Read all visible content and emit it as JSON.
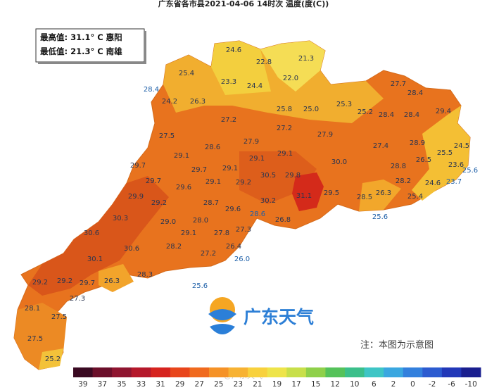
{
  "title": "广东省各市县2021-04-06 14时次 温度(度(C))",
  "stats": [
    "最高值: 31.1° C 惠阳",
    "最低值: 21.3° C 南雄"
  ],
  "logo": "广东天气",
  "note": "注：本图为示意图",
  "watermark": "@广东天气",
  "legend_labels": [
    "39",
    "37",
    "35",
    "33",
    "31",
    "29",
    "27",
    "25",
    "23",
    "21",
    "19",
    "17",
    "15",
    "12",
    "10",
    "6",
    "2",
    "0",
    "-2",
    "-6",
    "-10"
  ],
  "map_labels": [
    "24.6",
    "22.8",
    "21.3",
    "25.4",
    "23.3",
    "24.4",
    "22.0",
    "27.7",
    "28.4",
    "28.4",
    "24.2",
    "26.3",
    "25.8",
    "25.0",
    "25.3",
    "25.2",
    "28.4",
    "28.4",
    "29.4",
    "27.2",
    "27.2",
    "27.9",
    "27.5",
    "28.6",
    "27.9",
    "29.1",
    "29.1",
    "29.1",
    "29.1",
    "27.4",
    "28.9",
    "24.5",
    "25.5",
    "26.5",
    "30.0",
    "28.8",
    "23.6",
    "25.6",
    "29.7",
    "29.7",
    "29.7",
    "29.6",
    "29.1",
    "30.5",
    "29.8",
    "29.2",
    "28.2",
    "24.6",
    "23.7",
    "29.9",
    "29.5",
    "31.1",
    "26.3",
    "25.4",
    "28.5",
    "29.2",
    "28.7",
    "29.6",
    "30.2",
    "28.6",
    "30.3",
    "29.0",
    "28.0",
    "25.6",
    "26.8",
    "27.3",
    "30.6",
    "29.1",
    "27.8",
    "28.2",
    "26.4",
    "30.6",
    "27.2",
    "26.0",
    "30.1",
    "28.3",
    "29.2",
    "29.2",
    "29.7",
    "26.3",
    "25.6",
    "27.3",
    "28.1",
    "27.5",
    "27.5",
    "25.2"
  ]
}
